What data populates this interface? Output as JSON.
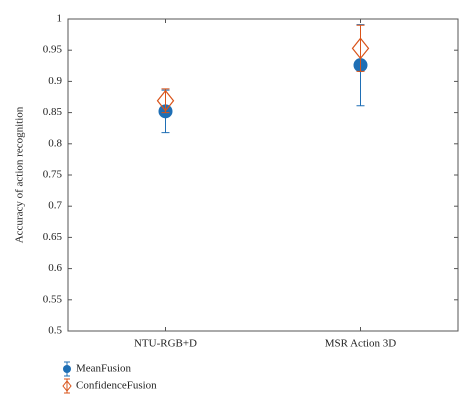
{
  "chart_data": {
    "type": "errorbar",
    "y_label": "Accuracy of action recognition",
    "categories": [
      "NTU-RGB+D",
      "MSR Action 3D"
    ],
    "ylim": [
      0.5,
      1
    ],
    "yticks": [
      0.5,
      0.55,
      0.6,
      0.65,
      0.7,
      0.75,
      0.8,
      0.85,
      0.9,
      0.95,
      1
    ],
    "series": [
      {
        "name": "MeanFusion",
        "color": "#1f6fb5",
        "marker": "circle",
        "values": [
          0.852,
          0.926
        ],
        "errors": [
          0.034,
          0.065
        ]
      },
      {
        "name": "ConfidenceFusion",
        "color": "#d95319",
        "marker": "diamond",
        "values": [
          0.869,
          0.953
        ],
        "errors": [
          0.019,
          0.037
        ]
      }
    ],
    "legend": "bottom-left"
  }
}
